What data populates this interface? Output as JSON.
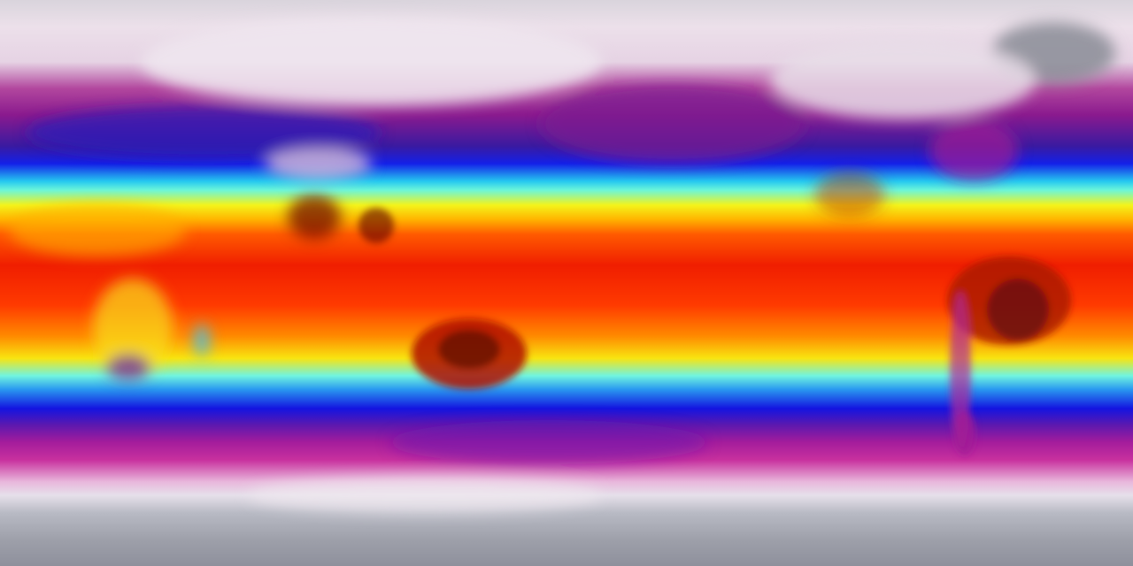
{
  "map": {
    "projection": "equirectangular",
    "colormap": [
      "#e8e0ea",
      "#a41c9c",
      "#1414e0",
      "#25c8f0",
      "#f4f41a",
      "#ff8a00",
      "#f01e00",
      "#5a0a0a"
    ],
    "polar_color": "#9a9ca8"
  }
}
